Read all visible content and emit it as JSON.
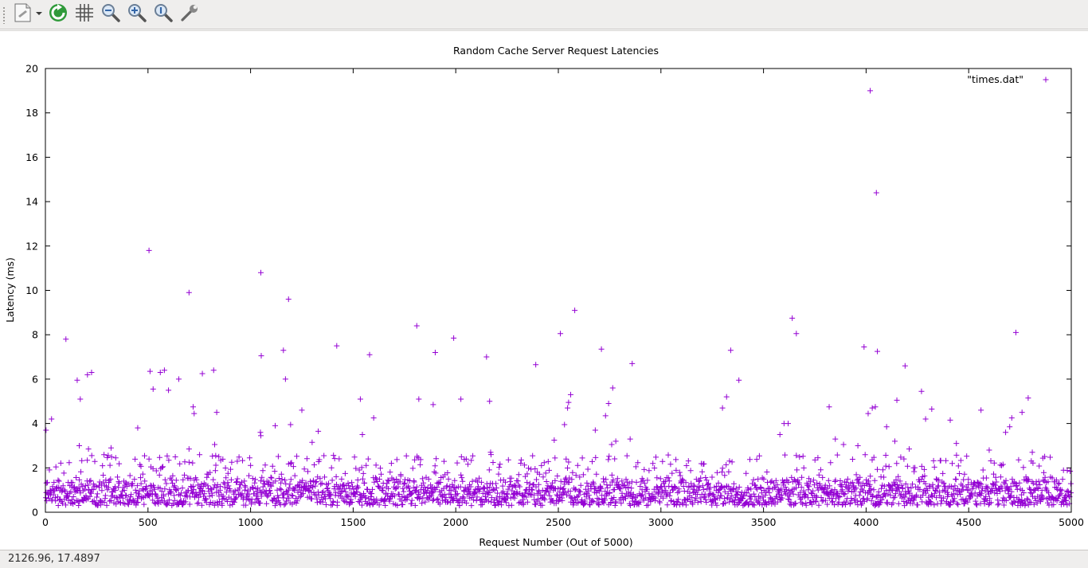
{
  "toolbar": {
    "buttons": [
      {
        "name": "export-menu-button",
        "icon": "document-export-icon"
      },
      {
        "name": "replot-button",
        "icon": "refresh-icon"
      },
      {
        "name": "grid-button",
        "icon": "grid-icon"
      },
      {
        "name": "zoom-out-button",
        "icon": "zoom-out-icon"
      },
      {
        "name": "zoom-in-button",
        "icon": "zoom-in-icon"
      },
      {
        "name": "zoom-reset-button",
        "icon": "zoom-original-icon"
      },
      {
        "name": "settings-button",
        "icon": "wrench-icon"
      }
    ]
  },
  "status": {
    "coords": "2126.96,  17.4897"
  },
  "colors": {
    "series": "#9400d3",
    "axis": "#000000",
    "toolbar": "#efeeed"
  },
  "chart_data": {
    "type": "scatter",
    "title": "Random Cache Server Request Latencies",
    "xlabel": "Request Number (Out of 5000)",
    "ylabel": "Latency (ms)",
    "xlim": [
      0,
      5000
    ],
    "ylim": [
      0,
      20
    ],
    "xticks": [
      0,
      500,
      1000,
      1500,
      2000,
      2500,
      3000,
      3500,
      4000,
      4500,
      5000
    ],
    "yticks": [
      0,
      2,
      4,
      6,
      8,
      10,
      12,
      14,
      16,
      18,
      20
    ],
    "grid": false,
    "legend": {
      "placement": "top-right",
      "entries": [
        "\"times.dat\""
      ]
    },
    "marker": "plus",
    "series": [
      {
        "name": "\"times.dat\"",
        "outliers": [
          [
            3,
            3.7
          ],
          [
            30,
            4.2
          ],
          [
            100,
            7.8
          ],
          [
            155,
            5.95
          ],
          [
            165,
            3.0
          ],
          [
            170,
            5.1
          ],
          [
            205,
            6.2
          ],
          [
            225,
            6.3
          ],
          [
            210,
            2.85
          ],
          [
            320,
            2.9
          ],
          [
            450,
            3.8
          ],
          [
            505,
            11.8
          ],
          [
            510,
            6.35
          ],
          [
            525,
            5.55
          ],
          [
            560,
            6.3
          ],
          [
            580,
            6.4
          ],
          [
            600,
            5.5
          ],
          [
            650,
            6.0
          ],
          [
            700,
            9.9
          ],
          [
            700,
            2.85
          ],
          [
            720,
            4.75
          ],
          [
            725,
            4.45
          ],
          [
            765,
            6.25
          ],
          [
            820,
            6.4
          ],
          [
            825,
            3.05
          ],
          [
            830,
            2.55
          ],
          [
            835,
            4.5
          ],
          [
            1050,
            10.8
          ],
          [
            1052,
            7.05
          ],
          [
            1048,
            3.6
          ],
          [
            1050,
            3.45
          ],
          [
            1120,
            3.9
          ],
          [
            1160,
            7.3
          ],
          [
            1170,
            6.0
          ],
          [
            1185,
            9.6
          ],
          [
            1195,
            3.95
          ],
          [
            1250,
            4.6
          ],
          [
            1300,
            3.15
          ],
          [
            1330,
            3.65
          ],
          [
            1420,
            7.5
          ],
          [
            1535,
            5.1
          ],
          [
            1545,
            3.5
          ],
          [
            1580,
            7.1
          ],
          [
            1600,
            4.25
          ],
          [
            1810,
            8.4
          ],
          [
            1820,
            5.1
          ],
          [
            1890,
            4.85
          ],
          [
            1900,
            7.2
          ],
          [
            1990,
            7.85
          ],
          [
            2025,
            5.1
          ],
          [
            2150,
            7.0
          ],
          [
            2165,
            5.0
          ],
          [
            2170,
            2.7
          ],
          [
            2390,
            6.65
          ],
          [
            2480,
            3.25
          ],
          [
            2510,
            8.05
          ],
          [
            2530,
            3.95
          ],
          [
            2545,
            4.7
          ],
          [
            2550,
            4.95
          ],
          [
            2560,
            5.3
          ],
          [
            2580,
            9.1
          ],
          [
            2680,
            3.7
          ],
          [
            2710,
            7.35
          ],
          [
            2730,
            4.35
          ],
          [
            2745,
            4.9
          ],
          [
            2760,
            3.05
          ],
          [
            2765,
            5.6
          ],
          [
            2780,
            3.2
          ],
          [
            2850,
            3.3
          ],
          [
            2860,
            6.7
          ],
          [
            3300,
            4.7
          ],
          [
            3320,
            5.2
          ],
          [
            3340,
            7.3
          ],
          [
            3380,
            5.95
          ],
          [
            3580,
            3.5
          ],
          [
            3600,
            4.0
          ],
          [
            3620,
            4.0
          ],
          [
            3640,
            8.75
          ],
          [
            3660,
            8.05
          ],
          [
            3820,
            4.75
          ],
          [
            3850,
            3.3
          ],
          [
            3890,
            3.05
          ],
          [
            3960,
            3.0
          ],
          [
            3990,
            7.45
          ],
          [
            4010,
            4.45
          ],
          [
            4020,
            19.0
          ],
          [
            4030,
            4.7
          ],
          [
            4045,
            4.75
          ],
          [
            4050,
            14.4
          ],
          [
            4055,
            7.25
          ],
          [
            4100,
            3.85
          ],
          [
            4140,
            3.2
          ],
          [
            4150,
            5.05
          ],
          [
            4190,
            6.6
          ],
          [
            4210,
            2.85
          ],
          [
            4270,
            5.45
          ],
          [
            4290,
            4.2
          ],
          [
            4320,
            4.65
          ],
          [
            4410,
            4.15
          ],
          [
            4440,
            3.1
          ],
          [
            4560,
            4.6
          ],
          [
            4600,
            2.8
          ],
          [
            4680,
            3.6
          ],
          [
            4700,
            3.85
          ],
          [
            4710,
            4.25
          ],
          [
            4730,
            8.1
          ],
          [
            4760,
            4.5
          ],
          [
            4790,
            5.15
          ],
          [
            4810,
            2.7
          ]
        ],
        "bulk": {
          "count": 5000,
          "typical_min": 0.3,
          "typical_max": 1.7,
          "occasional_max": 2.6
        }
      }
    ]
  }
}
